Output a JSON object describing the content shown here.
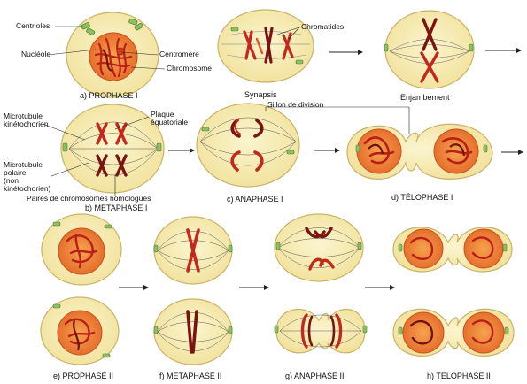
{
  "colors": {
    "cell_fill": "#f7edb0",
    "cell_edge": "#c9b36a",
    "nucleus": "#ee8a3c",
    "chromosome": "#c4271c",
    "chromatid_dark": "#7a1410",
    "spindle": "#555555",
    "centriole": "#6ea84a"
  },
  "captions": {
    "a": "a) PROPHASE I",
    "synapsis": "Synapsis",
    "enjambement": "Enjambement",
    "b": "b) MÉTAPHASE I",
    "c": "c) ANAPHASE I",
    "d": "d) TÉLOPHASE I",
    "e": "e) PROPHASE II",
    "f": "f) MÉTAPHASE II",
    "g": "g) ANAPHASE II",
    "h": "h) TÉLOPHASE II"
  },
  "labels": {
    "centrioles": "Centrioles",
    "nucleole": "Nucléole",
    "centromere": "Centromère",
    "chromosome": "Chromosome",
    "chromatides": "Chromatides",
    "microtubule_kineto_1": "Microtubule",
    "microtubule_kineto_2": "kinétochorien",
    "plaque_1": "Plaque",
    "plaque_2": "équatoriale",
    "sillon": "Sillon de division",
    "microtubule_pol_1": "Microtubule",
    "microtubule_pol_2": "polaire",
    "microtubule_pol_3": "(non",
    "microtubule_pol_4": "kinétochorien)",
    "paires": "Paires de chromosomes homologues"
  }
}
